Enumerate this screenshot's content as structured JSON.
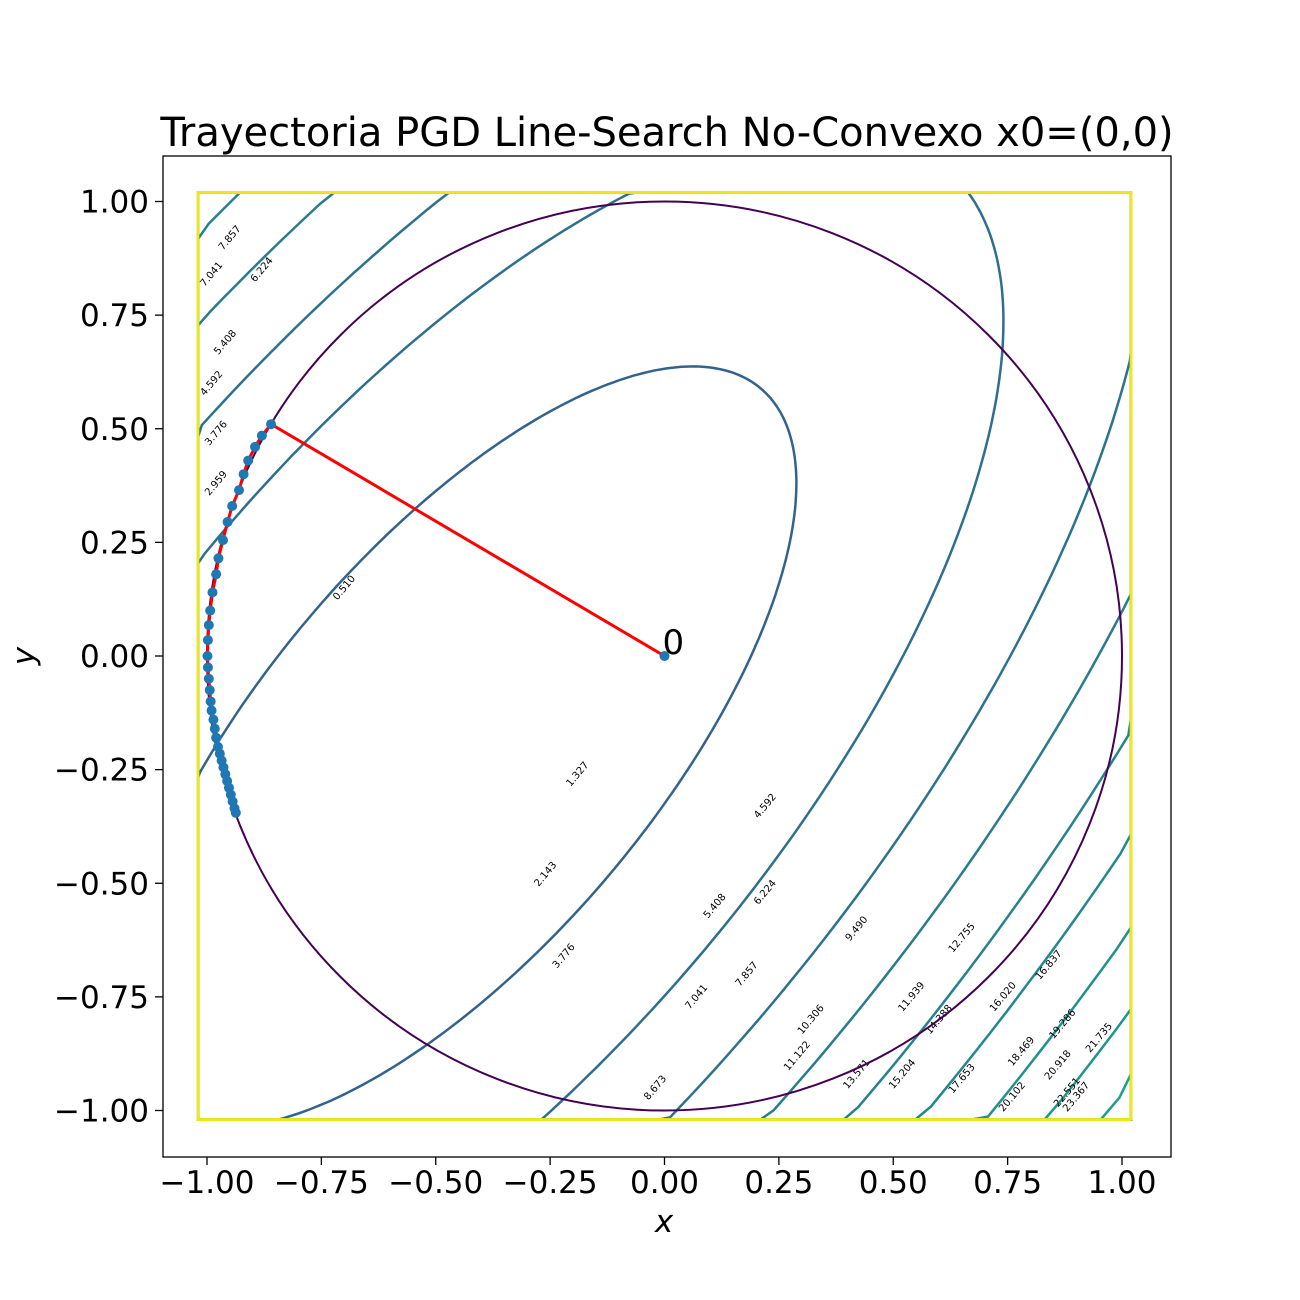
{
  "chart_data": {
    "type": "contour",
    "title": "Trayectoria PGD Line-Search No-Convexo x0=(0,0)",
    "xlabel": "x",
    "ylabel": "y",
    "xlim": [
      -1.1,
      1.1
    ],
    "ylim": [
      -1.1,
      1.1
    ],
    "grid": false,
    "x_ticks": [
      "−1.00",
      "−0.75",
      "−0.50",
      "−0.25",
      "0.00",
      "0.25",
      "0.50",
      "0.75",
      "1.00"
    ],
    "x_tick_values": [
      -1,
      -0.75,
      -0.5,
      -0.25,
      0,
      0.25,
      0.5,
      0.75,
      1
    ],
    "y_ticks": [
      "−1.00",
      "−0.75",
      "−0.50",
      "−0.25",
      "0.00",
      "0.25",
      "0.50",
      "0.75",
      "1.00"
    ],
    "y_tick_values": [
      -1,
      -0.75,
      -0.5,
      -0.25,
      0,
      0.25,
      0.5,
      0.75,
      1
    ],
    "contour_center": [
      -0.45,
      -0.2
    ],
    "contour_levels": [
      {
        "value": 0.51,
        "label": "0.510",
        "pos": [
          -0.7,
          0.15
        ],
        "color": "#33638d"
      },
      {
        "value": 1.327,
        "label": "1.327",
        "pos": [
          -0.19,
          -0.26
        ],
        "color": "#2e6e8e"
      },
      {
        "value": 2.143,
        "label": "2.143",
        "pos": [
          -0.26,
          -0.48
        ],
        "color": "#2c728e"
      },
      {
        "value": 2.959,
        "label": "2.959",
        "pos": [
          -0.98,
          0.38
        ],
        "color": "#287c8e"
      },
      {
        "value": 3.776,
        "label": "3.776",
        "pos": [
          -0.22,
          -0.66
        ],
        "color": "#26828e"
      },
      {
        "value": 4.592,
        "label": "4.592",
        "pos": [
          0.22,
          -0.33
        ],
        "color": "#23888e"
      },
      {
        "value": 5.408,
        "label": "5.408",
        "pos": [
          0.11,
          -0.55
        ],
        "color": "#21918c"
      },
      {
        "value": 6.224,
        "label": "6.224",
        "pos": [
          0.22,
          -0.52
        ],
        "color": "#20968b"
      },
      {
        "value": 7.041,
        "label": "7.041",
        "pos": [
          0.07,
          -0.75
        ],
        "color": "#1f9e89"
      },
      {
        "value": 7.857,
        "label": "7.857",
        "pos": [
          0.18,
          -0.7
        ],
        "color": "#21a685"
      },
      {
        "value": 8.673,
        "label": "8.673",
        "pos": [
          -0.02,
          -0.95
        ],
        "color": "#25ab82"
      },
      {
        "value": 9.49,
        "label": "9.490",
        "pos": [
          0.42,
          -0.6
        ],
        "color": "#2eb37c"
      },
      {
        "value": 10.306,
        "label": "10.306",
        "pos": [
          0.32,
          -0.8
        ],
        "color": "#35b779"
      },
      {
        "value": 11.122,
        "label": "11.122",
        "pos": [
          0.29,
          -0.88
        ],
        "color": "#3fbc73"
      },
      {
        "value": 11.939,
        "label": "11.939",
        "pos": [
          0.54,
          -0.75
        ],
        "color": "#4ac16d"
      },
      {
        "value": 12.755,
        "label": "12.755",
        "pos": [
          0.65,
          -0.62
        ],
        "color": "#54c568"
      },
      {
        "value": 13.571,
        "label": "13.571",
        "pos": [
          0.42,
          -0.92
        ],
        "color": "#5ec962"
      },
      {
        "value": 14.388,
        "label": "14.388",
        "pos": [
          0.6,
          -0.8
        ],
        "color": "#6ccd5a"
      },
      {
        "value": 15.204,
        "label": "15.204",
        "pos": [
          0.52,
          -0.92
        ],
        "color": "#7ad151"
      },
      {
        "value": 16.02,
        "label": "16.020",
        "pos": [
          0.74,
          -0.75
        ],
        "color": "#86d549"
      },
      {
        "value": 16.837,
        "label": "16.837",
        "pos": [
          0.84,
          -0.68
        ],
        "color": "#93d741"
      },
      {
        "value": 17.653,
        "label": "17.653",
        "pos": [
          0.65,
          -0.93
        ],
        "color": "#a0da39"
      },
      {
        "value": 18.469,
        "label": "18.469",
        "pos": [
          0.78,
          -0.87
        ],
        "color": "#addc30"
      },
      {
        "value": 19.286,
        "label": "19.286",
        "pos": [
          0.87,
          -0.81
        ],
        "color": "#bade28"
      },
      {
        "value": 20.102,
        "label": "20.102",
        "pos": [
          0.76,
          -0.97
        ],
        "color": "#c8e020"
      },
      {
        "value": 20.918,
        "label": "20.918",
        "pos": [
          0.86,
          -0.9
        ],
        "color": "#d2e21b"
      },
      {
        "value": 21.735,
        "label": "21.735",
        "pos": [
          0.95,
          -0.84
        ],
        "color": "#dde318"
      },
      {
        "value": 22.551,
        "label": "22.551",
        "pos": [
          0.88,
          -0.96
        ],
        "color": "#e5e419"
      },
      {
        "value": 23.367,
        "label": "23.367",
        "pos": [
          0.9,
          -0.97
        ],
        "color": "#f1e51d"
      }
    ],
    "upper_left_labels": [
      {
        "label": "7.857",
        "pos": [
          -0.95,
          0.92
        ]
      },
      {
        "label": "7.041",
        "pos": [
          -0.99,
          0.84
        ]
      },
      {
        "label": "6.224",
        "pos": [
          -0.88,
          0.85
        ]
      },
      {
        "label": "5.408",
        "pos": [
          -0.96,
          0.69
        ]
      },
      {
        "label": "4.592",
        "pos": [
          -0.99,
          0.6
        ]
      },
      {
        "label": "3.776",
        "pos": [
          -0.98,
          0.49
        ]
      }
    ],
    "constraint": {
      "type": "circle",
      "center": [
        0,
        0
      ],
      "radius": 1,
      "color": "#440154"
    },
    "trajectory": {
      "color": "#ff0000",
      "marker_color": "#1f77b4",
      "start_label": "0",
      "points": [
        [
          0.0,
          0.0
        ],
        [
          -0.86,
          0.51
        ],
        [
          -0.88,
          0.485
        ],
        [
          -0.895,
          0.46
        ],
        [
          -0.91,
          0.43
        ],
        [
          -0.92,
          0.4
        ],
        [
          -0.93,
          0.365
        ],
        [
          -0.945,
          0.33
        ],
        [
          -0.955,
          0.295
        ],
        [
          -0.965,
          0.255
        ],
        [
          -0.975,
          0.215
        ],
        [
          -0.98,
          0.18
        ],
        [
          -0.988,
          0.14
        ],
        [
          -0.993,
          0.1
        ],
        [
          -0.996,
          0.068
        ],
        [
          -0.998,
          0.035
        ],
        [
          -0.999,
          0.0
        ],
        [
          -0.998,
          -0.025
        ],
        [
          -0.996,
          -0.05
        ],
        [
          -0.994,
          -0.075
        ],
        [
          -0.992,
          -0.1
        ],
        [
          -0.99,
          -0.12
        ],
        [
          -0.986,
          -0.14
        ],
        [
          -0.983,
          -0.16
        ],
        [
          -0.98,
          -0.18
        ],
        [
          -0.976,
          -0.2
        ],
        [
          -0.972,
          -0.215
        ],
        [
          -0.968,
          -0.23
        ],
        [
          -0.964,
          -0.245
        ],
        [
          -0.96,
          -0.26
        ],
        [
          -0.956,
          -0.275
        ],
        [
          -0.952,
          -0.29
        ],
        [
          -0.948,
          -0.305
        ],
        [
          -0.944,
          -0.32
        ],
        [
          -0.94,
          -0.335
        ],
        [
          -0.937,
          -0.345
        ]
      ]
    }
  }
}
